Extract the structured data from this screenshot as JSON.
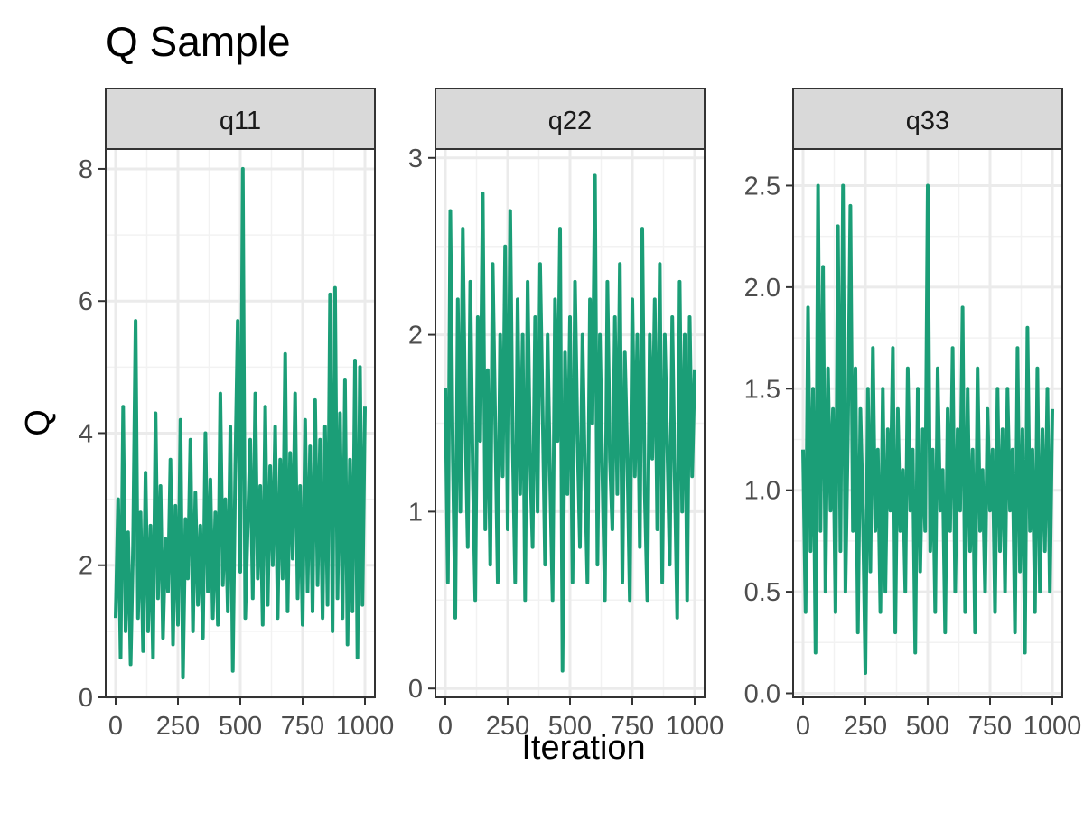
{
  "chart_data": {
    "type": "line",
    "title": "Q Sample",
    "xlabel": "Iteration",
    "ylabel": "Q",
    "grid": true,
    "series_color": "#1B9E77",
    "panels": [
      {
        "name": "q11",
        "xlim": [
          0,
          1000
        ],
        "ylim": [
          0,
          8.3
        ],
        "x_ticks": [
          0,
          250,
          500,
          750,
          1000
        ],
        "x_tick_labels": [
          "0",
          "250",
          "500",
          "750",
          "1000"
        ],
        "y_ticks": [
          0,
          2,
          4,
          6,
          8
        ],
        "y_tick_labels": [
          "0",
          "2",
          "4",
          "6",
          "8"
        ],
        "x": [
          0,
          10,
          20,
          30,
          40,
          50,
          60,
          70,
          80,
          90,
          100,
          110,
          120,
          130,
          140,
          150,
          160,
          170,
          180,
          190,
          200,
          210,
          220,
          230,
          240,
          250,
          260,
          270,
          280,
          290,
          300,
          310,
          320,
          330,
          340,
          350,
          360,
          370,
          380,
          390,
          400,
          410,
          420,
          430,
          440,
          450,
          460,
          470,
          480,
          490,
          500,
          510,
          520,
          530,
          540,
          550,
          560,
          570,
          580,
          590,
          600,
          610,
          620,
          630,
          640,
          650,
          660,
          670,
          680,
          690,
          700,
          710,
          720,
          730,
          740,
          750,
          760,
          770,
          780,
          790,
          800,
          810,
          820,
          830,
          840,
          850,
          860,
          870,
          880,
          890,
          900,
          910,
          920,
          930,
          940,
          950,
          960,
          970,
          980,
          990,
          1000
        ],
        "values": [
          1.2,
          3.0,
          0.6,
          4.4,
          1.0,
          2.5,
          0.5,
          2.3,
          5.7,
          1.2,
          2.8,
          0.7,
          3.4,
          1.0,
          2.6,
          0.6,
          4.3,
          1.5,
          3.2,
          0.9,
          2.4,
          1.6,
          3.6,
          0.8,
          2.9,
          1.1,
          4.2,
          0.3,
          2.7,
          1.8,
          3.9,
          1.0,
          3.1,
          1.4,
          2.6,
          0.9,
          4.0,
          1.6,
          3.3,
          1.2,
          2.8,
          1.1,
          4.6,
          1.7,
          3.0,
          1.3,
          4.1,
          0.4,
          3.5,
          5.7,
          1.9,
          8.0,
          1.2,
          2.6,
          3.9,
          1.5,
          4.6,
          1.8,
          3.2,
          1.1,
          4.4,
          1.4,
          3.5,
          2.0,
          4.1,
          1.2,
          3.6,
          1.8,
          5.2,
          1.3,
          3.7,
          2.1,
          4.6,
          1.5,
          3.2,
          1.1,
          4.2,
          1.6,
          3.8,
          1.3,
          4.5,
          1.7,
          3.9,
          1.2,
          4.1,
          1.4,
          6.1,
          1.0,
          6.2,
          1.5,
          4.3,
          1.2,
          4.8,
          0.8,
          3.6,
          1.3,
          5.1,
          0.6,
          5.0,
          1.4,
          4.4
        ]
      },
      {
        "name": "q22",
        "xlim": [
          0,
          1000
        ],
        "ylim": [
          -0.05,
          3.05
        ],
        "x_ticks": [
          0,
          250,
          500,
          750,
          1000
        ],
        "x_tick_labels": [
          "0",
          "250",
          "500",
          "750",
          "1000"
        ],
        "y_ticks": [
          0,
          1,
          2,
          3
        ],
        "y_tick_labels": [
          "0",
          "1",
          "2",
          "3"
        ],
        "x": [
          0,
          10,
          20,
          30,
          40,
          50,
          60,
          70,
          80,
          90,
          100,
          110,
          120,
          130,
          140,
          150,
          160,
          170,
          180,
          190,
          200,
          210,
          220,
          230,
          240,
          250,
          260,
          270,
          280,
          290,
          300,
          310,
          320,
          330,
          340,
          350,
          360,
          370,
          380,
          390,
          400,
          410,
          420,
          430,
          440,
          450,
          460,
          470,
          480,
          490,
          500,
          510,
          520,
          530,
          540,
          550,
          560,
          570,
          580,
          590,
          600,
          610,
          620,
          630,
          640,
          650,
          660,
          670,
          680,
          690,
          700,
          710,
          720,
          730,
          740,
          750,
          760,
          770,
          780,
          790,
          800,
          810,
          820,
          830,
          840,
          850,
          860,
          870,
          880,
          890,
          900,
          910,
          920,
          930,
          940,
          950,
          960,
          970,
          980,
          990,
          1000
        ],
        "values": [
          1.7,
          0.6,
          2.7,
          1.3,
          0.4,
          2.2,
          1.0,
          2.6,
          1.5,
          0.8,
          2.3,
          1.2,
          0.5,
          2.1,
          1.4,
          2.8,
          0.9,
          1.8,
          0.7,
          2.4,
          1.5,
          0.6,
          2.0,
          1.2,
          2.5,
          0.9,
          2.7,
          1.4,
          0.6,
          2.2,
          1.1,
          2.0,
          0.5,
          2.3,
          1.3,
          0.8,
          2.1,
          1.0,
          2.4,
          1.6,
          0.7,
          2.0,
          1.2,
          0.5,
          2.2,
          1.4,
          2.6,
          0.1,
          1.9,
          1.1,
          2.1,
          0.6,
          2.3,
          1.4,
          0.8,
          2.0,
          1.2,
          0.6,
          2.2,
          1.5,
          2.9,
          0.7,
          2.0,
          1.2,
          0.5,
          2.3,
          1.3,
          0.9,
          2.1,
          1.1,
          2.4,
          0.6,
          1.9,
          1.3,
          0.5,
          2.2,
          1.2,
          2.0,
          0.8,
          2.6,
          1.1,
          0.5,
          2.0,
          1.3,
          2.2,
          0.9,
          2.4,
          0.6,
          2.0,
          1.4,
          0.7,
          2.1,
          1.2,
          0.4,
          2.3,
          1.0,
          2.0,
          0.5,
          2.1,
          1.2,
          1.8
        ]
      },
      {
        "name": "q33",
        "xlim": [
          0,
          1000
        ],
        "ylim": [
          -0.02,
          2.68
        ],
        "x_ticks": [
          0,
          250,
          500,
          750,
          1000
        ],
        "x_tick_labels": [
          "0",
          "250",
          "500",
          "750",
          "1000"
        ],
        "y_ticks": [
          0,
          0.5,
          1,
          1.5,
          2,
          2.5
        ],
        "y_tick_labels": [
          "0.0",
          "0.5",
          "1.0",
          "1.5",
          "2.0",
          "2.5"
        ],
        "x": [
          0,
          10,
          20,
          30,
          40,
          50,
          60,
          70,
          80,
          90,
          100,
          110,
          120,
          130,
          140,
          150,
          160,
          170,
          180,
          190,
          200,
          210,
          220,
          230,
          240,
          250,
          260,
          270,
          280,
          290,
          300,
          310,
          320,
          330,
          340,
          350,
          360,
          370,
          380,
          390,
          400,
          410,
          420,
          430,
          440,
          450,
          460,
          470,
          480,
          490,
          500,
          510,
          520,
          530,
          540,
          550,
          560,
          570,
          580,
          590,
          600,
          610,
          620,
          630,
          640,
          650,
          660,
          670,
          680,
          690,
          700,
          710,
          720,
          730,
          740,
          750,
          760,
          770,
          780,
          790,
          800,
          810,
          820,
          830,
          840,
          850,
          860,
          870,
          880,
          890,
          900,
          910,
          920,
          930,
          940,
          950,
          960,
          970,
          980,
          990,
          1000
        ],
        "values": [
          1.2,
          0.4,
          1.9,
          0.7,
          1.5,
          0.2,
          2.5,
          0.8,
          2.1,
          0.5,
          1.6,
          0.9,
          1.4,
          0.4,
          2.3,
          0.7,
          2.5,
          0.5,
          1.3,
          2.4,
          0.8,
          1.6,
          0.3,
          1.4,
          0.9,
          0.1,
          1.5,
          0.6,
          1.7,
          0.8,
          1.2,
          0.4,
          1.5,
          0.5,
          1.3,
          0.9,
          1.7,
          0.3,
          1.4,
          0.8,
          1.1,
          0.5,
          1.6,
          0.9,
          1.2,
          0.2,
          1.5,
          0.6,
          1.3,
          0.8,
          2.5,
          0.7,
          1.2,
          0.4,
          1.6,
          0.9,
          1.1,
          0.3,
          1.4,
          0.8,
          1.7,
          0.5,
          1.3,
          0.9,
          1.9,
          0.4,
          1.5,
          0.7,
          1.2,
          0.3,
          1.6,
          0.8,
          1.1,
          0.5,
          1.4,
          0.9,
          1.2,
          0.4,
          1.5,
          0.7,
          1.3,
          0.5,
          1.5,
          0.9,
          1.2,
          0.3,
          1.7,
          0.6,
          1.3,
          0.2,
          1.8,
          0.8,
          1.2,
          0.4,
          1.6,
          0.5,
          1.3,
          0.7,
          1.5,
          0.5,
          1.4
        ]
      }
    ]
  }
}
